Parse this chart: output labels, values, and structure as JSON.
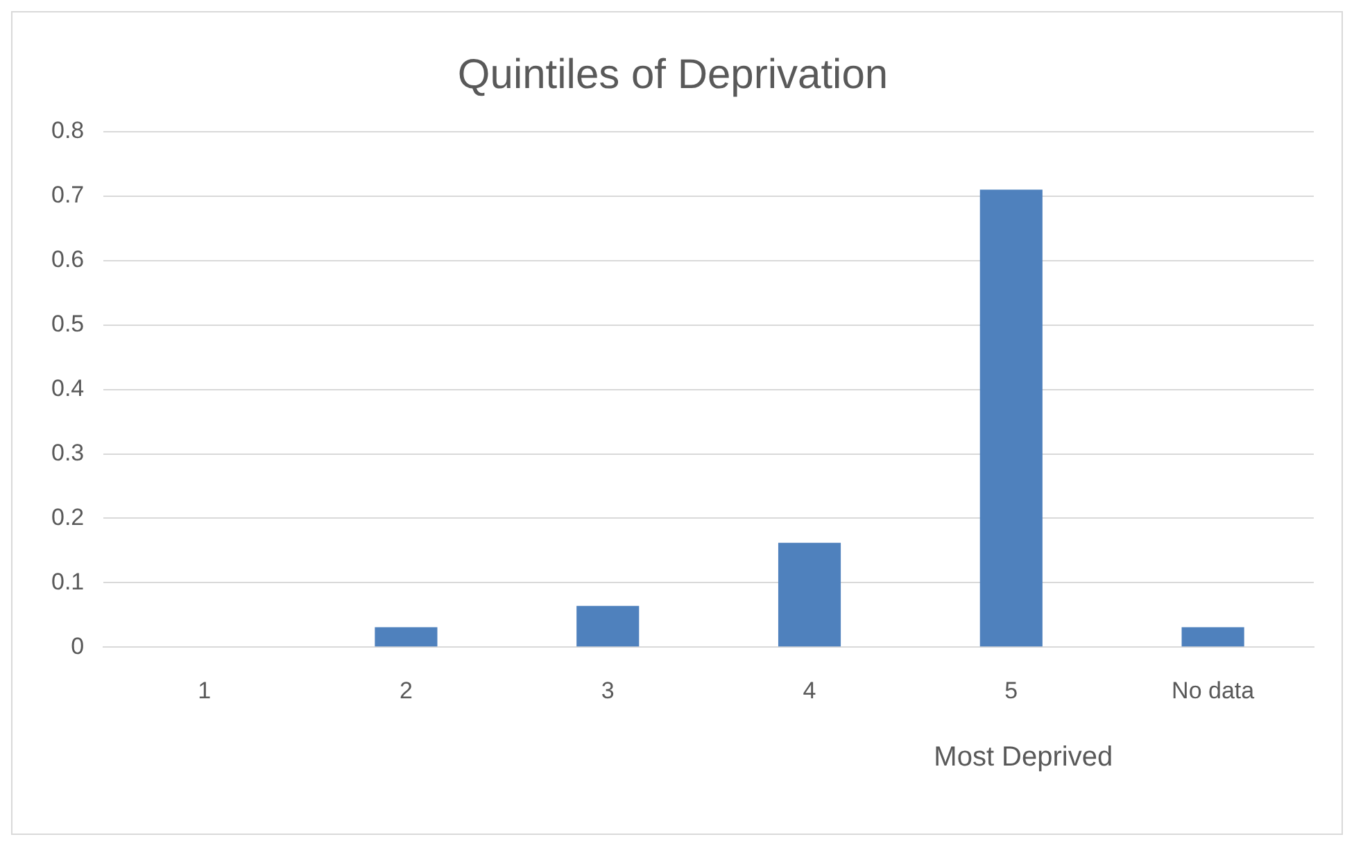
{
  "chart_data": {
    "type": "bar",
    "title": "Quintiles of Deprivation",
    "categories": [
      "1",
      "2",
      "3",
      "4",
      "5",
      "No data"
    ],
    "values": [
      0,
      0.031,
      0.064,
      0.162,
      0.71,
      0.031
    ],
    "color": "#4f81bd",
    "ylim": [
      0,
      0.8
    ],
    "yticks": [
      0,
      0.1,
      0.2,
      0.3,
      0.4,
      0.5,
      0.6,
      0.7,
      0.8
    ],
    "grid": "y",
    "legend": false,
    "xlabel": "Most Deprived"
  }
}
